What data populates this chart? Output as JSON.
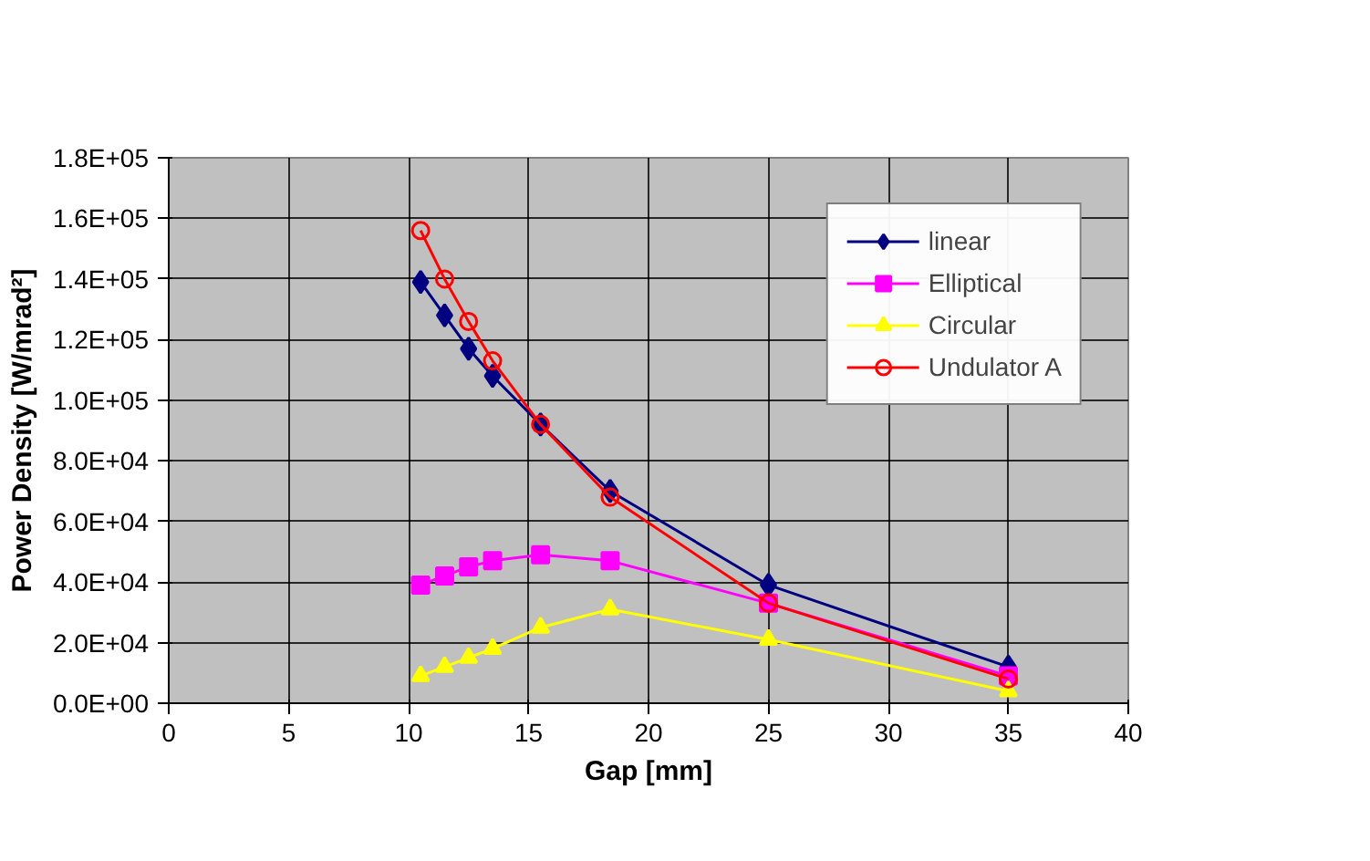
{
  "chart_data": {
    "type": "line",
    "xlabel": "Gap [mm]",
    "ylabel": "Power Density [W/mrad²]",
    "x": [
      10.5,
      11.5,
      12.5,
      13.5,
      15.5,
      18.4,
      25,
      35
    ],
    "series": [
      {
        "name": "linear",
        "color": "#000080",
        "marker": "diamond",
        "values": [
          139000,
          128000,
          117000,
          108000,
          92000,
          70000,
          39000,
          12000
        ]
      },
      {
        "name": "Elliptical",
        "color": "#ff00ff",
        "marker": "square",
        "values": [
          39000,
          42000,
          45000,
          47000,
          49000,
          47000,
          33000,
          9000
        ]
      },
      {
        "name": "Circular",
        "color": "#ffff00",
        "marker": "triangle",
        "values": [
          9000,
          12000,
          15000,
          18000,
          25000,
          31000,
          21000,
          4000
        ]
      },
      {
        "name": "Undulator A",
        "color": "#ff0000",
        "marker": "circle",
        "values": [
          156000,
          140000,
          126000,
          113000,
          92000,
          68000,
          33000,
          8000
        ]
      }
    ],
    "xlim": [
      0,
      40
    ],
    "xticks": [
      0,
      5,
      10,
      15,
      20,
      25,
      30,
      35,
      40
    ],
    "ylim": [
      0,
      180000
    ],
    "yticks": [
      {
        "value": 0,
        "label": "0.0E+00"
      },
      {
        "value": 20000,
        "label": "2.0E+04"
      },
      {
        "value": 40000,
        "label": "4.0E+04"
      },
      {
        "value": 60000,
        "label": "6.0E+04"
      },
      {
        "value": 80000,
        "label": "8.0E+04"
      },
      {
        "value": 100000,
        "label": "1.0E+05"
      },
      {
        "value": 120000,
        "label": "1.2E+05"
      },
      {
        "value": 140000,
        "label": "1.4E+05"
      },
      {
        "value": 160000,
        "label": "1.6E+05"
      },
      {
        "value": 180000,
        "label": "1.8E+05"
      }
    ],
    "grid": true,
    "legend": "top right",
    "line_style": "solid"
  }
}
